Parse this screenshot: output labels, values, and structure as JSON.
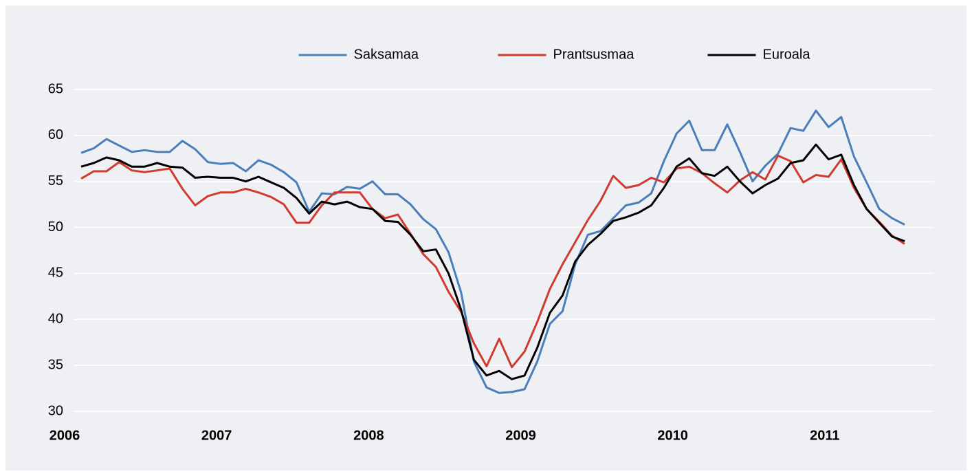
{
  "chart_data": {
    "type": "line",
    "categories": [
      "2006",
      null,
      null,
      null,
      null,
      null,
      null,
      null,
      null,
      null,
      null,
      null,
      "2007",
      null,
      null,
      null,
      null,
      null,
      null,
      null,
      null,
      null,
      null,
      null,
      "2008",
      null,
      null,
      null,
      null,
      null,
      null,
      null,
      null,
      null,
      null,
      null,
      "2009",
      null,
      null,
      null,
      null,
      null,
      null,
      null,
      null,
      null,
      null,
      null,
      "2010",
      null,
      null,
      null,
      null,
      null,
      null,
      null,
      null,
      null,
      null,
      null,
      "2011",
      null,
      null,
      null,
      null,
      null
    ],
    "series": [
      {
        "name": "Saksamaa",
        "color": "#4a7ebb",
        "values": [
          58.1,
          58.6,
          59.6,
          58.9,
          58.2,
          58.4,
          58.2,
          58.2,
          59.4,
          58.5,
          57.1,
          56.9,
          57.0,
          56.1,
          57.3,
          56.8,
          56.0,
          54.9,
          51.7,
          53.7,
          53.6,
          54.4,
          54.2,
          55.0,
          53.6,
          53.6,
          52.5,
          50.9,
          49.8,
          47.3,
          42.9,
          35.4,
          32.6,
          32.0,
          32.1,
          32.4,
          35.4,
          39.5,
          40.9,
          46.0,
          49.2,
          49.6,
          51.0,
          52.4,
          52.7,
          53.7,
          57.2,
          60.2,
          61.6,
          58.4,
          58.4,
          61.2,
          58.2,
          55.0,
          56.7,
          58.0,
          60.8,
          60.5,
          62.7,
          60.9,
          62.0,
          57.7,
          54.9,
          52.0,
          51.0,
          50.3
        ]
      },
      {
        "name": "Prantsusmaa",
        "color": "#d03a2f",
        "values": [
          55.3,
          56.1,
          56.1,
          57.1,
          56.2,
          56.0,
          56.2,
          56.4,
          54.2,
          52.4,
          53.4,
          53.8,
          53.8,
          54.2,
          53.8,
          53.3,
          52.5,
          50.5,
          50.5,
          52.4,
          53.8,
          53.8,
          53.8,
          52.0,
          51.0,
          51.4,
          49.3,
          47.1,
          45.7,
          43.0,
          40.8,
          37.4,
          34.9,
          37.9,
          34.8,
          36.5,
          39.7,
          43.3,
          46.0,
          48.4,
          50.8,
          52.9,
          55.6,
          54.3,
          54.6,
          55.4,
          54.9,
          56.4,
          56.6,
          55.9,
          54.8,
          53.8,
          55.1,
          56.0,
          55.2,
          57.8,
          57.2,
          54.9,
          55.7,
          55.5,
          57.4,
          54.3,
          52.0,
          50.6,
          49.1,
          48.2
        ]
      },
      {
        "name": "Euroala",
        "color": "#000000",
        "values": [
          56.6,
          57.0,
          57.6,
          57.3,
          56.6,
          56.6,
          57.0,
          56.6,
          56.5,
          55.4,
          55.5,
          55.4,
          55.4,
          55.0,
          55.5,
          54.9,
          54.3,
          53.2,
          51.5,
          52.8,
          52.5,
          52.8,
          52.2,
          52.0,
          50.7,
          50.6,
          49.2,
          47.4,
          47.6,
          45.0,
          41.0,
          35.6,
          33.9,
          34.4,
          33.5,
          33.9,
          36.9,
          40.7,
          42.6,
          46.3,
          48.1,
          49.3,
          50.7,
          51.1,
          51.6,
          52.4,
          54.3,
          56.6,
          57.5,
          55.9,
          55.6,
          56.6,
          55.0,
          53.7,
          54.6,
          55.3,
          57.0,
          57.3,
          59.0,
          57.4,
          57.9,
          54.6,
          52.0,
          50.5,
          49.0,
          48.5
        ]
      }
    ],
    "ylim": [
      30,
      65
    ],
    "yticks": [
      30,
      35,
      40,
      45,
      50,
      55,
      60,
      65
    ],
    "grid": true,
    "legend": "top"
  }
}
